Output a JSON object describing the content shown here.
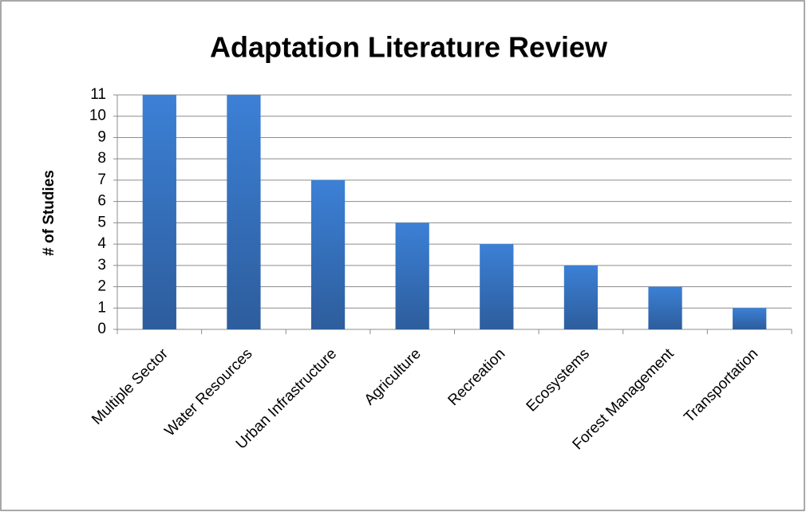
{
  "chart_data": {
    "type": "bar",
    "title": "Adaptation Literature Review",
    "y_label": "# of Studies",
    "categories": [
      "Multiple Sector",
      "Water Resources",
      "Urban Infrastructure",
      "Agriculture",
      "Recreation",
      "Ecosystems",
      "Forest Management",
      "Transportation"
    ],
    "values": [
      11,
      11,
      7,
      5,
      4,
      3,
      2,
      1
    ],
    "color": "#3c80d6",
    "ylim": [
      0,
      11
    ],
    "yticks": [
      0,
      1,
      2,
      3,
      4,
      5,
      6,
      7,
      8,
      9,
      10,
      11
    ],
    "grid": true
  }
}
